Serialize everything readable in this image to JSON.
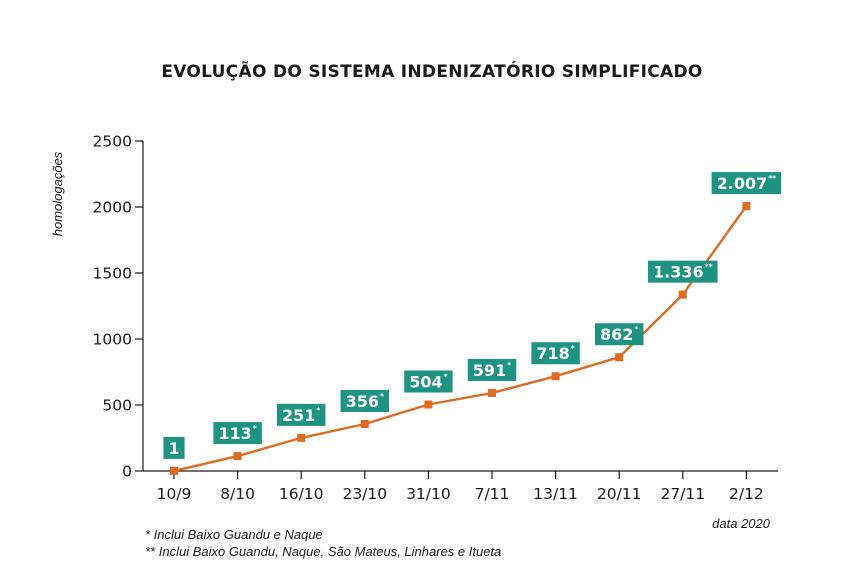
{
  "chart_data": {
    "type": "line",
    "title": "EVOLUÇÃO DO SISTEMA INDENIZATÓRIO SIMPLIFICADO",
    "ylabel": "homologações",
    "xlabel": "data 2020",
    "categories": [
      "10/9",
      "8/10",
      "16/10",
      "23/10",
      "31/10",
      "7/11",
      "13/11",
      "20/11",
      "27/11",
      "2/12"
    ],
    "values": [
      1,
      113,
      251,
      356,
      504,
      591,
      718,
      862,
      1336,
      2007
    ],
    "data_labels": [
      "1",
      "113",
      "251",
      "356",
      "504",
      "591",
      "718",
      "862",
      "1.336",
      "2.007"
    ],
    "label_notes": [
      "",
      "*",
      "*",
      "*",
      "*",
      "*",
      "*",
      "*",
      "**",
      "**"
    ],
    "ylim": [
      0,
      2500
    ],
    "yticks": [
      0,
      500,
      1000,
      1500,
      2000,
      2500
    ],
    "grid": false,
    "colors": {
      "line": "#e06a22",
      "label_box": "#1d9381",
      "axis": "#1a1a1a"
    }
  },
  "footnotes": [
    "*   Inclui Baixo Guandu e Naque",
    "** Inclui Baixo Guandu, Naque, São Mateus, Linhares e Itueta"
  ]
}
